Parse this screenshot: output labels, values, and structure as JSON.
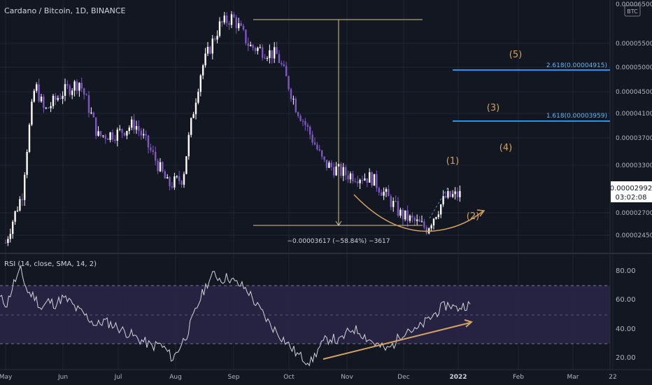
{
  "header": {
    "title": "Cardano / Bitcoin, 1D, BINANCE"
  },
  "currency_badge": "BTC",
  "price_axis_top": "0.00006500",
  "rsi": {
    "title": "RSI (14, close, SMA, 14, 2)",
    "ticks": [
      "80.00",
      "60.00",
      "40.00",
      "20.00"
    ]
  },
  "last_price": {
    "value": "0.00002992",
    "countdown": "03:02:08"
  },
  "measure_label": "−0.00003617 (−58.84%) −3617",
  "fib": [
    {
      "label": "2.618(0.00004915)"
    },
    {
      "label": "1.618(0.00003959)"
    }
  ],
  "waves": [
    "(1)",
    "(2)",
    "(3)",
    "(4)",
    "(5)"
  ],
  "colors": {
    "background": "#131722",
    "candle_up": "#ffffff",
    "candle_down": "#7e57c2",
    "fib_line": "#2196f3",
    "annotation": "#d4a35f",
    "rsi_line": "#d1d4dc",
    "rsi_band": "#2a2546"
  },
  "chart_data": [
    {
      "type": "candlestick",
      "title": "Cardano / Bitcoin, 1D, BINANCE",
      "y_ticks": [
        "0.00006500",
        "0.00005500",
        "0.00005000",
        "0.00004500",
        "0.00004100",
        "0.00003700",
        "0.00003300",
        "0.00002700",
        "0.00002450"
      ],
      "x_ticks": [
        "May",
        "Jun",
        "Jul",
        "Aug",
        "Sep",
        "Oct",
        "Nov",
        "Dec",
        "2022",
        "Feb",
        "Mar",
        "22"
      ],
      "scale": "log",
      "ylim": [
        2.4e-05,
        6.5e-05
      ],
      "series": [
        {
          "approx_close_path": [
            {
              "x": "2021-05-01",
              "y": 2.45e-05
            },
            {
              "x": "2021-05-10",
              "y": 3e-05
            },
            {
              "x": "2021-05-17",
              "y": 4.7e-05
            },
            {
              "x": "2021-05-22",
              "y": 4.2e-05
            },
            {
              "x": "2021-06-01",
              "y": 4.55e-05
            },
            {
              "x": "2021-06-10",
              "y": 4.75e-05
            },
            {
              "x": "2021-06-20",
              "y": 3.8e-05
            },
            {
              "x": "2021-07-01",
              "y": 3.85e-05
            },
            {
              "x": "2021-07-10",
              "y": 4e-05
            },
            {
              "x": "2021-07-20",
              "y": 3.5e-05
            },
            {
              "x": "2021-07-28",
              "y": 3.1e-05
            },
            {
              "x": "2021-08-05",
              "y": 3.2e-05
            },
            {
              "x": "2021-08-15",
              "y": 5e-05
            },
            {
              "x": "2021-08-25",
              "y": 6e-05
            },
            {
              "x": "2021-09-01",
              "y": 6.2e-05
            },
            {
              "x": "2021-09-10",
              "y": 5.5e-05
            },
            {
              "x": "2021-09-25",
              "y": 5.3e-05
            },
            {
              "x": "2021-10-05",
              "y": 4.3e-05
            },
            {
              "x": "2021-10-20",
              "y": 3.4e-05
            },
            {
              "x": "2021-11-01",
              "y": 3.25e-05
            },
            {
              "x": "2021-11-15",
              "y": 3.2e-05
            },
            {
              "x": "2021-12-01",
              "y": 2.75e-05
            },
            {
              "x": "2021-12-15",
              "y": 2.6e-05
            },
            {
              "x": "2021-12-25",
              "y": 2.95e-05
            },
            {
              "x": "2022-01-03",
              "y": 2.992e-05
            }
          ]
        }
      ],
      "annotations": {
        "fib_levels": [
          {
            "ratio": 2.618,
            "value": 4.915e-05
          },
          {
            "ratio": 1.618,
            "value": 3.959e-05
          }
        ],
        "measure": {
          "from": 6.2e-05,
          "to": 2.58e-05,
          "change": "−0.00003617 (−58.84%) −3617"
        },
        "waves": [
          "(1)",
          "(2)",
          "(3)",
          "(4)",
          "(5)"
        ]
      }
    },
    {
      "type": "line",
      "title": "RSI (14, close, SMA, 14, 2)",
      "ylim": [
        15,
        90
      ],
      "bands": [
        30,
        50,
        70
      ],
      "series": [
        {
          "name": "RSI",
          "values": [
            62,
            58,
            72,
            80,
            66,
            63,
            55,
            60,
            58,
            62,
            60,
            55,
            52,
            48,
            44,
            47,
            45,
            43,
            40,
            38,
            35,
            33,
            30,
            32,
            28,
            22,
            30,
            38,
            50,
            62,
            72,
            78,
            74,
            76,
            72,
            70,
            66,
            58,
            52,
            45,
            40,
            35,
            30,
            25,
            22,
            20,
            28,
            34,
            36,
            33,
            38,
            42,
            40,
            36,
            33,
            30,
            28,
            32,
            38,
            42,
            40,
            44,
            48,
            52,
            56,
            58,
            55,
            57,
            58
          ]
        }
      ],
      "trendline": {
        "from": 20,
        "to": 46
      }
    }
  ]
}
